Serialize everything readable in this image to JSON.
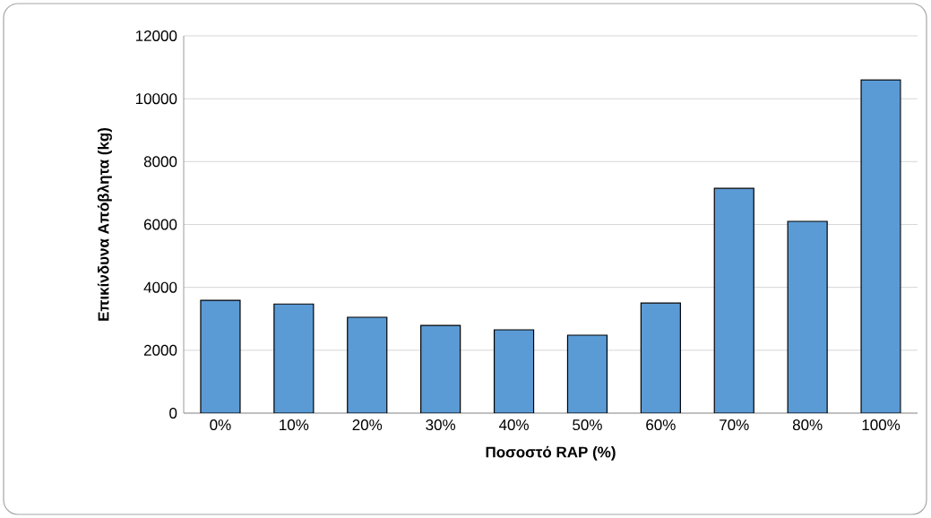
{
  "chart_data": {
    "type": "bar",
    "xlabel": "Ποσοστό RAP (%)",
    "ylabel": "Επικίνδυνα Απόβλητα (kg)",
    "categories": [
      "0%",
      "10%",
      "20%",
      "30%",
      "40%",
      "50%",
      "60%",
      "70%",
      "80%",
      "100%"
    ],
    "values": [
      3590,
      3470,
      3050,
      2790,
      2650,
      2480,
      3500,
      7150,
      6100,
      10600
    ],
    "color": "#5b9bd5",
    "ylim": [
      0,
      12000
    ],
    "yticks": [
      0,
      2000,
      4000,
      6000,
      8000,
      10000,
      12000
    ],
    "grid": "y"
  }
}
